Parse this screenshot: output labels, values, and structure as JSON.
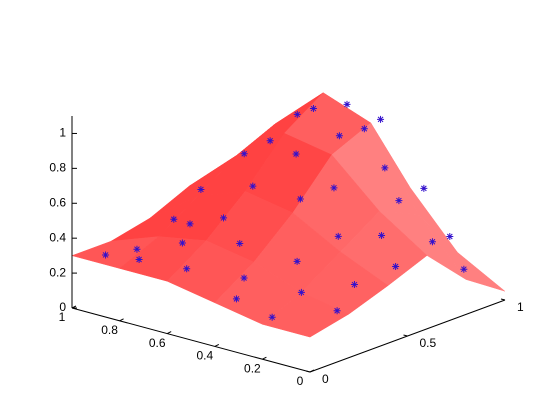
{
  "chart_data": {
    "type": "surface-scatter3d",
    "xlim": [
      0,
      1
    ],
    "xticks": [
      0,
      0.2,
      0.4,
      0.6,
      0.8,
      1
    ],
    "ylim": [
      0,
      1
    ],
    "yticks": [
      0,
      0.5,
      1
    ],
    "zlim": [
      0,
      1.1
    ],
    "zticks": [
      0,
      0.2,
      0.4,
      0.6,
      0.8,
      1
    ],
    "surface": {
      "color": "#ff8080",
      "x": [
        0,
        0.2,
        0.4,
        0.6,
        0.8,
        1
      ],
      "y": [
        0,
        0.2,
        0.4,
        0.6,
        0.8,
        1
      ],
      "z": [
        [
          0.2,
          0.25,
          0.33,
          0.42,
          0.2,
          0.05
        ],
        [
          0.2,
          0.3,
          0.45,
          0.6,
          0.5,
          0.2
        ],
        [
          0.25,
          0.4,
          0.6,
          0.85,
          0.95,
          0.5
        ],
        [
          0.3,
          0.45,
          0.65,
          0.9,
          1.05,
          0.7
        ],
        [
          0.3,
          0.4,
          0.55,
          0.7,
          0.8,
          0.6
        ],
        [
          0.3,
          0.3,
          0.35,
          0.45,
          0.5,
          0.45
        ]
      ]
    },
    "points": {
      "color": "#3311cc",
      "x": [
        0.9,
        0.85,
        0.8,
        0.7,
        0.75,
        0.6,
        0.5,
        0.4,
        0.3,
        0.2,
        0.1,
        0.05,
        0.15,
        0.25,
        0.35,
        0.45,
        0.55,
        0.65,
        0.7,
        0.6,
        0.5,
        0.4,
        0.45,
        0.3,
        0.2,
        0.1,
        0.05,
        0.15,
        0.3,
        0.55,
        0.75,
        0.85,
        0.95,
        0.9,
        0.2,
        0.05,
        0.65,
        0.35
      ],
      "y": [
        0.05,
        0.15,
        0.1,
        0.2,
        0.3,
        0.1,
        0.25,
        0.15,
        0.3,
        0.2,
        0.35,
        0.5,
        0.55,
        0.45,
        0.55,
        0.5,
        0.6,
        0.5,
        0.65,
        0.75,
        0.8,
        0.85,
        0.7,
        0.75,
        0.7,
        0.75,
        0.85,
        0.9,
        0.95,
        0.95,
        0.85,
        0.7,
        0.6,
        0.4,
        0.05,
        0.2,
        0.35,
        0.05
      ],
      "z": [
        0.32,
        0.33,
        0.31,
        0.4,
        0.45,
        0.33,
        0.45,
        0.33,
        0.4,
        0.3,
        0.32,
        0.38,
        0.5,
        0.5,
        0.7,
        0.62,
        0.8,
        0.62,
        0.8,
        0.98,
        1.02,
        0.95,
        0.9,
        0.75,
        0.62,
        0.4,
        0.22,
        0.35,
        0.55,
        0.8,
        0.85,
        0.65,
        0.45,
        0.38,
        0.22,
        0.25,
        0.5,
        0.27
      ]
    }
  }
}
